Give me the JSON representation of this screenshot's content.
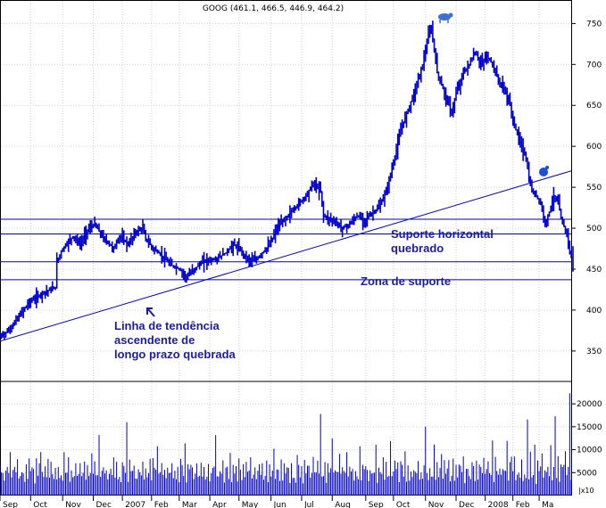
{
  "chart_data": {
    "type": "ohlc",
    "title": "GOOG (461.1, 466.5, 446.9, 464.2)",
    "colors": {
      "price": "#0000cc",
      "volume": "#0000cc",
      "lines": "#0000cc",
      "annotation": "#1c1ca8",
      "grid": "#d0d0d0"
    },
    "price_axis": {
      "ticks": [
        350,
        400,
        450,
        500,
        550,
        600,
        650,
        700,
        750
      ],
      "ylim": [
        315,
        770
      ],
      "position": "right"
    },
    "volume_axis": {
      "ticks": [
        5000,
        10000,
        15000,
        20000
      ],
      "labels": [
        "5000",
        "10000",
        "15000",
        "20000"
      ],
      "ylim": [
        0,
        24500
      ],
      "multiplier_label": "|x10",
      "position": "right"
    },
    "x_axis_labels": [
      "Sep",
      "Oct",
      "Nov",
      "Dec",
      "2007",
      "Feb",
      "Mar",
      "Apr",
      "May",
      "Jun",
      "Jul",
      "Aug",
      "Sep",
      "Oct",
      "Nov",
      "Dec",
      "2008",
      "Feb",
      "Ma"
    ],
    "x_axis_label_sessions": [
      0,
      21,
      43,
      64,
      84,
      104,
      123,
      144,
      164,
      186,
      207,
      228,
      251,
      270,
      292,
      313,
      333,
      352,
      370
    ],
    "grid": true,
    "series_price": [
      [
        0,
        368
      ],
      [
        6,
        375
      ],
      [
        10,
        385
      ],
      [
        14,
        395
      ],
      [
        20,
        410
      ],
      [
        25,
        415
      ],
      [
        30,
        422
      ],
      [
        35,
        425
      ],
      [
        38,
        428
      ],
      [
        39,
        460
      ],
      [
        43,
        475
      ],
      [
        50,
        490
      ],
      [
        55,
        480
      ],
      [
        60,
        498
      ],
      [
        65,
        505
      ],
      [
        70,
        490
      ],
      [
        78,
        475
      ],
      [
        82,
        490
      ],
      [
        88,
        480
      ],
      [
        93,
        495
      ],
      [
        98,
        500
      ],
      [
        100,
        487
      ],
      [
        105,
        475
      ],
      [
        110,
        468
      ],
      [
        117,
        455
      ],
      [
        123,
        450
      ],
      [
        128,
        440
      ],
      [
        133,
        450
      ],
      [
        140,
        460
      ],
      [
        148,
        462
      ],
      [
        155,
        470
      ],
      [
        160,
        480
      ],
      [
        165,
        473
      ],
      [
        170,
        462
      ],
      [
        175,
        460
      ],
      [
        180,
        470
      ],
      [
        185,
        480
      ],
      [
        190,
        500
      ],
      [
        195,
        510
      ],
      [
        200,
        520
      ],
      [
        205,
        530
      ],
      [
        210,
        540
      ],
      [
        215,
        555
      ],
      [
        220,
        545
      ],
      [
        222,
        515
      ],
      [
        228,
        510
      ],
      [
        235,
        500
      ],
      [
        240,
        505
      ],
      [
        245,
        515
      ],
      [
        250,
        510
      ],
      [
        255,
        518
      ],
      [
        260,
        525
      ],
      [
        265,
        545
      ],
      [
        270,
        580
      ],
      [
        275,
        620
      ],
      [
        280,
        645
      ],
      [
        285,
        670
      ],
      [
        290,
        700
      ],
      [
        294,
        735
      ],
      [
        296,
        745
      ],
      [
        300,
        690
      ],
      [
        305,
        665
      ],
      [
        310,
        640
      ],
      [
        313,
        665
      ],
      [
        318,
        690
      ],
      [
        322,
        700
      ],
      [
        326,
        715
      ],
      [
        330,
        700
      ],
      [
        334,
        710
      ],
      [
        338,
        700
      ],
      [
        342,
        680
      ],
      [
        346,
        670
      ],
      [
        350,
        650
      ],
      [
        353,
        625
      ],
      [
        356,
        610
      ],
      [
        359,
        595
      ],
      [
        361,
        585
      ],
      [
        363,
        560
      ],
      [
        365,
        545
      ],
      [
        368,
        540
      ],
      [
        371,
        530
      ],
      [
        374,
        505
      ],
      [
        377,
        520
      ],
      [
        380,
        540
      ],
      [
        383,
        530
      ],
      [
        386,
        505
      ],
      [
        389,
        495
      ],
      [
        391,
        470
      ],
      [
        392,
        464
      ]
    ],
    "volume_values": [
      6200,
      4500,
      5100,
      3800,
      7600,
      5200,
      4400,
      8800,
      3600,
      6100,
      4900,
      5500,
      7100,
      3900,
      4700,
      6600,
      5000,
      4200,
      9500,
      3800,
      6900,
      4400,
      5200,
      7700,
      3700,
      6300,
      4800,
      5600,
      10200,
      4100,
      5800,
      6700,
      4500,
      7300,
      3900,
      6000,
      5300,
      4900,
      8200,
      3800
    ],
    "price_lines": {
      "support_high": 511,
      "support_mid": 493,
      "zone_top": 459,
      "zone_bottom": 437,
      "trend_start_price": 362,
      "trend_end_price": 570
    },
    "annotations": {
      "support_broken_line1": "Suporte horizontal",
      "support_broken_line2": "quebrado",
      "support_zone": "Zona de suporte",
      "trendline_line1": "Linha de tendência",
      "trendline_line2": "ascendente de",
      "trendline_line3": "longo prazo quebrada"
    }
  }
}
